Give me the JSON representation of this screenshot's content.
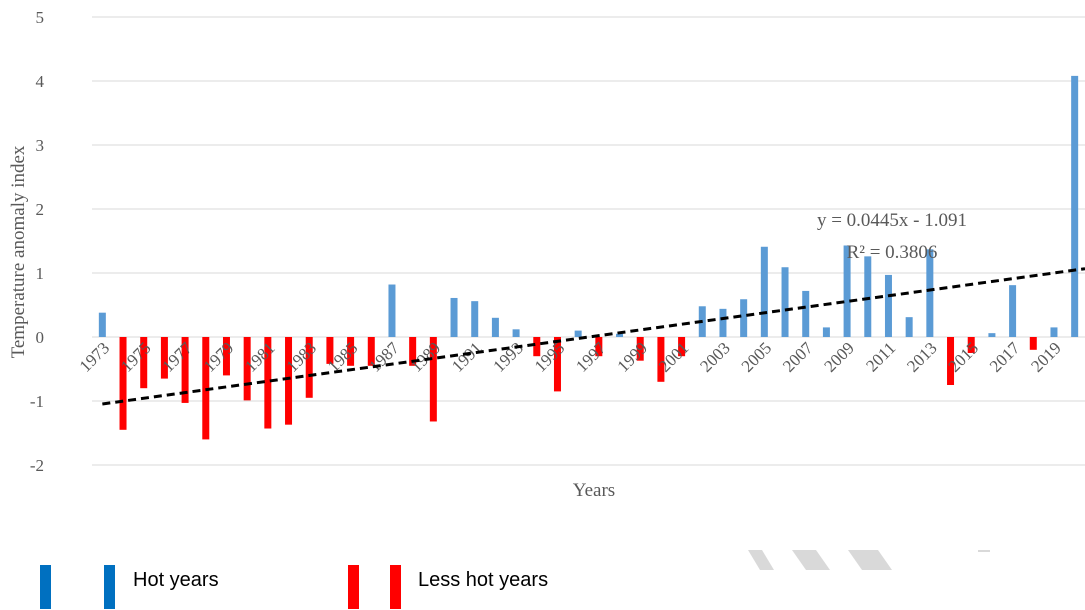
{
  "chart_data": {
    "type": "bar",
    "xlabel": "Years",
    "ylabel": "Temperature anomaly index",
    "ylim": [
      -2,
      5
    ],
    "yticks": [
      -2,
      -1,
      0,
      1,
      2,
      3,
      4,
      5
    ],
    "grid": true,
    "years": [
      1973,
      1974,
      1975,
      1976,
      1977,
      1978,
      1979,
      1980,
      1981,
      1982,
      1983,
      1984,
      1985,
      1986,
      1987,
      1988,
      1989,
      1990,
      1991,
      1992,
      1993,
      1994,
      1995,
      1996,
      1997,
      1998,
      1999,
      2000,
      2001,
      2002,
      2003,
      2004,
      2005,
      2006,
      2007,
      2008,
      2009,
      2010,
      2011,
      2012,
      2013,
      2014,
      2015,
      2016,
      2017,
      2018,
      2019,
      2020
    ],
    "x_tick_labels": [
      "1973",
      "1975",
      "1977",
      "1979",
      "1981",
      "1983",
      "1985",
      "1987",
      "1989",
      "1991",
      "1993",
      "1995",
      "1997",
      "1999",
      "2001",
      "2003",
      "2005",
      "2007",
      "2009",
      "2011",
      "2013",
      "2015",
      "2017",
      "2019"
    ],
    "values": [
      0.38,
      -1.45,
      -0.8,
      -0.65,
      -1.03,
      -1.6,
      -0.6,
      -0.99,
      -1.43,
      -1.37,
      -0.95,
      -0.42,
      -0.45,
      -0.45,
      0.82,
      -0.45,
      -1.32,
      0.61,
      0.56,
      0.3,
      0.12,
      -0.3,
      -0.85,
      0.1,
      -0.3,
      0.05,
      -0.37,
      -0.7,
      -0.3,
      0.48,
      0.44,
      0.59,
      1.41,
      1.09,
      0.72,
      0.15,
      1.43,
      1.26,
      0.97,
      0.31,
      1.37,
      -0.75,
      -0.25,
      0.06,
      0.81,
      -0.2,
      0.15,
      4.08
    ],
    "series": [
      {
        "name": "Hot years",
        "color": "#5b9bd5",
        "rule": "value > 0"
      },
      {
        "name": "Less hot years",
        "color": "#ff0000",
        "rule": "value < 0"
      }
    ],
    "trendline": {
      "slope": 0.0445,
      "intercept": -1.091,
      "equation": "y = 0.0445x - 1.091",
      "r_squared": "R² = 0.3806",
      "style": "dashed",
      "color": "#000000"
    },
    "legend_placement": "bottom-left"
  },
  "legend": {
    "items": [
      {
        "label": "Hot years",
        "color": "#0070c0"
      },
      {
        "label": "Less hot years",
        "color": "#ff0000"
      }
    ]
  }
}
